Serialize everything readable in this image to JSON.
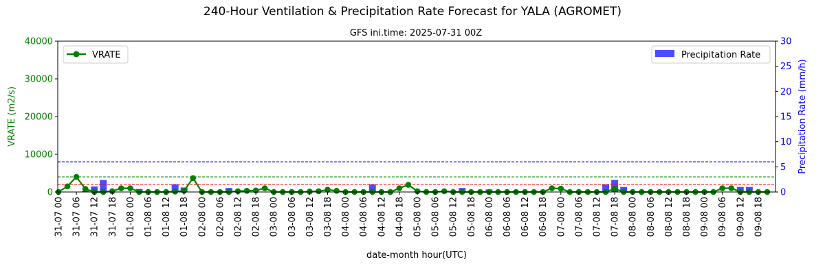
{
  "chart_data": {
    "type": "combo-line-bar",
    "title": "240-Hour Ventilation & Precipitation Rate Forecast for YALA (AGROMET)",
    "subtitle": "GFS ini.time: 2025-07-31 00Z",
    "xlabel": "date-month hour(UTC)",
    "ylabel_left": "VRATE (m2/s)",
    "ylabel_right": "Precipitation Rate (mm/h)",
    "ylim_left": [
      0,
      40000
    ],
    "ylim_right": [
      0,
      30
    ],
    "yticks_left": [
      "0",
      "10000",
      "20000",
      "30000",
      "40000"
    ],
    "yticks_right": [
      "0",
      "5",
      "10",
      "15",
      "20",
      "25",
      "30"
    ],
    "x_tick_labels": [
      "31-07 00",
      "31-07 06",
      "31-07 12",
      "31-07 18",
      "01-08 00",
      "01-08 06",
      "01-08 12",
      "01-08 18",
      "02-08 00",
      "02-08 06",
      "02-08 12",
      "02-08 18",
      "03-08 00",
      "03-08 06",
      "03-08 12",
      "03-08 18",
      "04-08 00",
      "04-08 06",
      "04-08 12",
      "04-08 18",
      "05-08 00",
      "05-08 06",
      "05-08 12",
      "05-08 18",
      "06-08 00",
      "06-08 06",
      "06-08 12",
      "06-08 18",
      "07-08 00",
      "07-08 06",
      "07-08 12",
      "07-08 18",
      "08-08 00",
      "08-08 06",
      "08-08 12",
      "08-08 18",
      "09-08 00",
      "09-08 06",
      "09-08 12",
      "09-08 18"
    ],
    "series": [
      {
        "name": "VRATE",
        "axis": "left",
        "color": "#008000",
        "values": [
          0,
          1500,
          4000,
          800,
          0,
          0,
          200,
          1000,
          1000,
          0,
          0,
          0,
          0,
          100,
          300,
          3700,
          0,
          0,
          0,
          0,
          200,
          300,
          400,
          1000,
          0,
          0,
          0,
          0,
          100,
          200,
          600,
          300,
          0,
          0,
          0,
          0,
          0,
          0,
          1000,
          1900,
          200,
          0,
          0,
          200,
          0,
          0,
          0,
          0,
          0,
          0,
          0,
          0,
          0,
          0,
          0,
          1000,
          900,
          0,
          0,
          0,
          0,
          0,
          900,
          0,
          0,
          0,
          0,
          0,
          0,
          0,
          0,
          0,
          0,
          0,
          1000,
          1000,
          0,
          0,
          0,
          0
        ]
      },
      {
        "name": "Precipitation Rate",
        "axis": "right",
        "color": "#0000ff",
        "values": [
          0,
          0,
          0,
          0.2,
          1.1,
          2.4,
          0,
          0,
          0,
          0.6,
          0,
          0,
          0,
          1.5,
          0.9,
          0,
          0,
          0,
          0,
          0.8,
          0,
          0,
          0,
          0,
          0,
          0,
          0,
          0,
          0,
          0,
          0,
          0,
          0,
          0,
          0,
          1.5,
          0,
          0,
          0,
          0,
          0,
          0,
          0,
          0,
          0,
          0.8,
          0,
          0,
          0.5,
          0,
          0,
          0,
          0,
          0,
          0,
          0,
          0,
          0,
          0,
          0,
          0,
          1.5,
          2.4,
          1.0,
          0,
          0,
          0,
          0,
          0,
          0,
          0,
          0,
          0,
          0,
          0,
          0,
          1.0,
          1.0,
          0,
          0
        ]
      }
    ],
    "reference_lines": [
      {
        "axis": "left",
        "value": 2000,
        "color": "#ff0000",
        "style": "dashed"
      },
      {
        "axis": "left",
        "value": 4000,
        "color": "#008000",
        "style": "dashed"
      },
      {
        "axis": "right",
        "value": 6,
        "color": "#0000ff",
        "style": "dashed"
      }
    ],
    "legend_left": "upper-left",
    "legend_right": "upper-right",
    "grid": false
  }
}
